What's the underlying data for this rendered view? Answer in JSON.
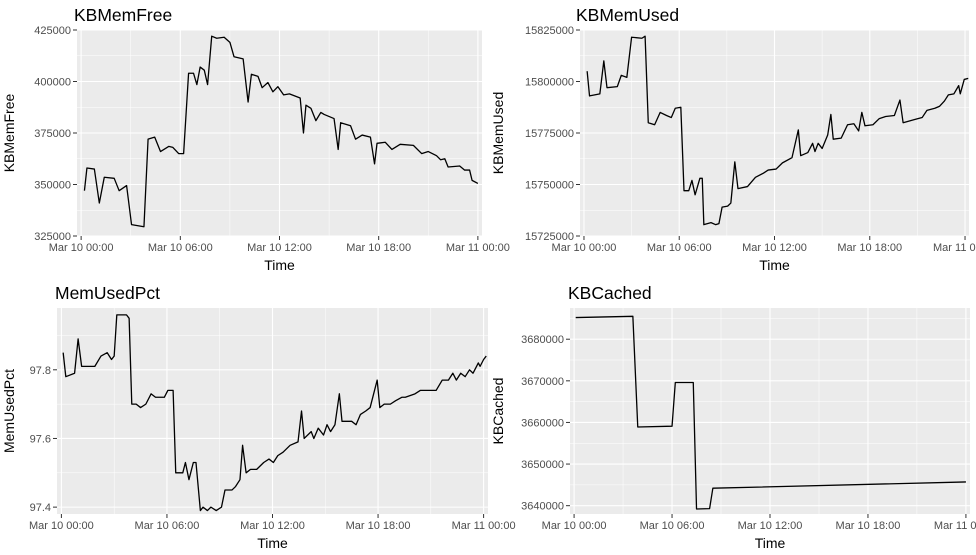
{
  "chart_data": [
    {
      "type": "line",
      "title": "KBMemFree",
      "xlabel": "Time",
      "ylabel": "KBMemFree",
      "xlim": [
        -0.25,
        24.25
      ],
      "ylim": [
        325000,
        425000
      ],
      "x_ticks": [
        0,
        6,
        12,
        18,
        24
      ],
      "x_tick_labels": [
        "Mar 10 00:00",
        "Mar 10 06:00",
        "Mar 10 12:00",
        "Mar 10 18:00",
        "Mar 11 00:00"
      ],
      "y_ticks": [
        325000,
        350000,
        375000,
        400000,
        425000
      ],
      "y_tick_labels": [
        "325000",
        "350000",
        "375000",
        "400000",
        "425000"
      ],
      "grid": true,
      "legend": "none",
      "points": [
        [
          0.2,
          347000
        ],
        [
          0.35,
          358000
        ],
        [
          0.8,
          357500
        ],
        [
          1.1,
          341000
        ],
        [
          1.4,
          353500
        ],
        [
          2.0,
          353000
        ],
        [
          2.3,
          347000
        ],
        [
          2.75,
          349500
        ],
        [
          3.05,
          330500
        ],
        [
          3.8,
          329500
        ],
        [
          4.05,
          372000
        ],
        [
          4.45,
          373000
        ],
        [
          4.8,
          366000
        ],
        [
          5.3,
          368500
        ],
        [
          5.55,
          368000
        ],
        [
          5.9,
          365000
        ],
        [
          6.2,
          365000
        ],
        [
          6.5,
          404000
        ],
        [
          6.8,
          404000
        ],
        [
          7.0,
          398500
        ],
        [
          7.2,
          407000
        ],
        [
          7.45,
          405500
        ],
        [
          7.65,
          398500
        ],
        [
          7.9,
          422000
        ],
        [
          8.2,
          421000
        ],
        [
          8.65,
          421500
        ],
        [
          9.0,
          419000
        ],
        [
          9.25,
          412000
        ],
        [
          9.8,
          411000
        ],
        [
          10.1,
          390000
        ],
        [
          10.3,
          403500
        ],
        [
          10.7,
          402500
        ],
        [
          10.95,
          397000
        ],
        [
          11.3,
          399500
        ],
        [
          11.6,
          395000
        ],
        [
          11.9,
          397500
        ],
        [
          12.25,
          393500
        ],
        [
          12.6,
          394000
        ],
        [
          13.25,
          392000
        ],
        [
          13.45,
          375000
        ],
        [
          13.6,
          388500
        ],
        [
          13.9,
          387000
        ],
        [
          14.2,
          381000
        ],
        [
          14.5,
          385000
        ],
        [
          14.7,
          384000
        ],
        [
          15.3,
          382000
        ],
        [
          15.55,
          367000
        ],
        [
          15.7,
          380000
        ],
        [
          16.3,
          378500
        ],
        [
          16.6,
          372000
        ],
        [
          17.0,
          374000
        ],
        [
          17.5,
          373000
        ],
        [
          17.75,
          360000
        ],
        [
          17.9,
          370000
        ],
        [
          18.4,
          370500
        ],
        [
          18.8,
          367000
        ],
        [
          19.3,
          369500
        ],
        [
          20.1,
          369000
        ],
        [
          20.6,
          365000
        ],
        [
          21.0,
          366000
        ],
        [
          21.5,
          364000
        ],
        [
          21.75,
          362000
        ],
        [
          22.0,
          362500
        ],
        [
          22.2,
          358500
        ],
        [
          22.9,
          359000
        ],
        [
          23.2,
          357000
        ],
        [
          23.5,
          357000
        ],
        [
          23.65,
          352000
        ],
        [
          24.0,
          350500
        ]
      ]
    },
    {
      "type": "line",
      "title": "KBMemUsed",
      "xlabel": "Time",
      "ylabel": "KBMemUsed",
      "xlim": [
        -0.25,
        24.25
      ],
      "ylim": [
        15725000,
        15825000
      ],
      "x_ticks": [
        0,
        6,
        12,
        18,
        24
      ],
      "x_tick_labels": [
        "Mar 10 00:00",
        "Mar 10 06:00",
        "Mar 10 12:00",
        "Mar 10 18:00",
        "Mar 11 00:00"
      ],
      "y_ticks": [
        15725000,
        15750000,
        15775000,
        15800000,
        15825000
      ],
      "y_tick_labels": [
        "15725000",
        "15750000",
        "15775000",
        "15800000",
        "15825000"
      ],
      "grid": true,
      "legend": "none",
      "points": [
        [
          0.2,
          15805000
        ],
        [
          0.35,
          15793000
        ],
        [
          1.0,
          15794000
        ],
        [
          1.25,
          15810000
        ],
        [
          1.45,
          15797000
        ],
        [
          2.1,
          15797500
        ],
        [
          2.35,
          15803000
        ],
        [
          2.7,
          15802000
        ],
        [
          3.0,
          15821500
        ],
        [
          3.65,
          15821000
        ],
        [
          3.85,
          15822000
        ],
        [
          4.05,
          15780000
        ],
        [
          4.45,
          15779000
        ],
        [
          4.8,
          15785000
        ],
        [
          5.2,
          15783500
        ],
        [
          5.5,
          15782500
        ],
        [
          5.75,
          15787000
        ],
        [
          6.1,
          15787500
        ],
        [
          6.3,
          15747000
        ],
        [
          6.6,
          15747000
        ],
        [
          6.8,
          15752000
        ],
        [
          7.0,
          15745000
        ],
        [
          7.3,
          15753000
        ],
        [
          7.45,
          15753000
        ],
        [
          7.55,
          15730500
        ],
        [
          8.0,
          15731500
        ],
        [
          8.3,
          15730500
        ],
        [
          8.5,
          15731000
        ],
        [
          8.7,
          15739000
        ],
        [
          9.05,
          15739500
        ],
        [
          9.25,
          15741000
        ],
        [
          9.5,
          15761000
        ],
        [
          9.7,
          15748000
        ],
        [
          10.3,
          15749000
        ],
        [
          10.8,
          15753500
        ],
        [
          11.3,
          15755500
        ],
        [
          11.6,
          15757000
        ],
        [
          12.1,
          15757500
        ],
        [
          12.5,
          15760500
        ],
        [
          13.1,
          15763000
        ],
        [
          13.5,
          15776500
        ],
        [
          13.65,
          15764000
        ],
        [
          14.1,
          15765500
        ],
        [
          14.4,
          15770000
        ],
        [
          14.55,
          15766000
        ],
        [
          14.75,
          15770000
        ],
        [
          15.0,
          15767500
        ],
        [
          15.35,
          15774000
        ],
        [
          15.55,
          15784000
        ],
        [
          15.7,
          15772000
        ],
        [
          16.2,
          15772500
        ],
        [
          16.6,
          15779000
        ],
        [
          17.0,
          15779500
        ],
        [
          17.3,
          15776000
        ],
        [
          17.5,
          15785000
        ],
        [
          17.7,
          15778500
        ],
        [
          18.2,
          15779000
        ],
        [
          18.6,
          15782000
        ],
        [
          19.0,
          15783000
        ],
        [
          19.55,
          15783500
        ],
        [
          19.9,
          15791000
        ],
        [
          20.1,
          15780000
        ],
        [
          20.8,
          15781500
        ],
        [
          21.3,
          15782500
        ],
        [
          21.6,
          15786000
        ],
        [
          22.1,
          15787000
        ],
        [
          22.4,
          15788000
        ],
        [
          22.7,
          15790500
        ],
        [
          22.95,
          15793500
        ],
        [
          23.3,
          15794000
        ],
        [
          23.6,
          15798000
        ],
        [
          23.7,
          15794000
        ],
        [
          23.95,
          15801000
        ],
        [
          24.2,
          15801500
        ]
      ]
    },
    {
      "type": "line",
      "title": "MemUsedPct",
      "xlabel": "Time",
      "ylabel": "MemUsedPct",
      "xlim": [
        -0.25,
        24.25
      ],
      "ylim": [
        97.38,
        97.98
      ],
      "x_ticks": [
        0,
        6,
        12,
        18,
        24
      ],
      "x_tick_labels": [
        "Mar 10 00:00",
        "Mar 10 06:00",
        "Mar 10 12:00",
        "Mar 10 18:00",
        "Mar 11 00:00"
      ],
      "y_ticks": [
        97.4,
        97.6,
        97.8
      ],
      "y_tick_labels": [
        "97.4",
        "97.6",
        "97.8"
      ],
      "grid": true,
      "legend": "none",
      "points": [
        [
          0.1,
          97.85
        ],
        [
          0.25,
          97.78
        ],
        [
          0.75,
          97.79
        ],
        [
          0.95,
          97.89
        ],
        [
          1.15,
          97.81
        ],
        [
          1.9,
          97.81
        ],
        [
          2.25,
          97.84
        ],
        [
          2.6,
          97.85
        ],
        [
          2.85,
          97.83
        ],
        [
          3.0,
          97.84
        ],
        [
          3.15,
          97.96
        ],
        [
          3.7,
          97.96
        ],
        [
          3.85,
          97.95
        ],
        [
          4.0,
          97.7
        ],
        [
          4.25,
          97.7
        ],
        [
          4.5,
          97.69
        ],
        [
          4.8,
          97.7
        ],
        [
          5.1,
          97.73
        ],
        [
          5.35,
          97.72
        ],
        [
          5.85,
          97.72
        ],
        [
          6.05,
          97.74
        ],
        [
          6.35,
          97.74
        ],
        [
          6.5,
          97.5
        ],
        [
          6.9,
          97.5
        ],
        [
          7.05,
          97.53
        ],
        [
          7.25,
          97.48
        ],
        [
          7.5,
          97.53
        ],
        [
          7.65,
          97.53
        ],
        [
          7.9,
          97.39
        ],
        [
          8.05,
          97.4
        ],
        [
          8.3,
          97.39
        ],
        [
          8.5,
          97.4
        ],
        [
          8.8,
          97.39
        ],
        [
          9.1,
          97.4
        ],
        [
          9.3,
          97.45
        ],
        [
          9.7,
          97.45
        ],
        [
          9.9,
          97.46
        ],
        [
          10.15,
          97.48
        ],
        [
          10.3,
          97.58
        ],
        [
          10.5,
          97.5
        ],
        [
          10.75,
          97.51
        ],
        [
          11.1,
          97.51
        ],
        [
          11.5,
          97.53
        ],
        [
          11.8,
          97.54
        ],
        [
          12.05,
          97.53
        ],
        [
          12.3,
          97.55
        ],
        [
          12.6,
          97.56
        ],
        [
          13.0,
          97.58
        ],
        [
          13.45,
          97.59
        ],
        [
          13.65,
          97.68
        ],
        [
          13.8,
          97.6
        ],
        [
          14.2,
          97.62
        ],
        [
          14.35,
          97.6
        ],
        [
          14.6,
          97.63
        ],
        [
          14.9,
          97.61
        ],
        [
          15.1,
          97.64
        ],
        [
          15.3,
          97.62
        ],
        [
          15.55,
          97.64
        ],
        [
          15.8,
          97.73
        ],
        [
          15.95,
          97.65
        ],
        [
          16.5,
          97.65
        ],
        [
          16.75,
          97.64
        ],
        [
          17.0,
          97.67
        ],
        [
          17.3,
          97.68
        ],
        [
          17.55,
          97.69
        ],
        [
          17.95,
          97.77
        ],
        [
          18.1,
          97.69
        ],
        [
          18.35,
          97.7
        ],
        [
          18.7,
          97.7
        ],
        [
          19.0,
          97.71
        ],
        [
          19.35,
          97.72
        ],
        [
          19.55,
          97.72
        ],
        [
          20.1,
          97.73
        ],
        [
          20.4,
          97.74
        ],
        [
          21.0,
          97.74
        ],
        [
          21.3,
          97.74
        ],
        [
          21.65,
          97.77
        ],
        [
          22.0,
          97.77
        ],
        [
          22.25,
          97.79
        ],
        [
          22.45,
          97.77
        ],
        [
          22.7,
          97.79
        ],
        [
          22.95,
          97.78
        ],
        [
          23.2,
          97.8
        ],
        [
          23.4,
          97.79
        ],
        [
          23.7,
          97.82
        ],
        [
          23.8,
          97.81
        ],
        [
          24.0,
          97.83
        ],
        [
          24.15,
          97.84
        ]
      ]
    },
    {
      "type": "line",
      "title": "KBCached",
      "xlabel": "Time",
      "ylabel": "KBCached",
      "xlim": [
        -0.25,
        24.25
      ],
      "ylim": [
        3638000,
        3687500
      ],
      "x_ticks": [
        0,
        6,
        12,
        18,
        24
      ],
      "x_tick_labels": [
        "Mar 10 00:00",
        "Mar 10 06:00",
        "Mar 10 12:00",
        "Mar 10 18:00",
        "Mar 11 00:00"
      ],
      "y_ticks": [
        3640000,
        3650000,
        3660000,
        3670000,
        3680000
      ],
      "y_tick_labels": [
        "3640000",
        "3650000",
        "3660000",
        "3670000",
        "3680000"
      ],
      "grid": true,
      "legend": "none",
      "points": [
        [
          0.1,
          3685200
        ],
        [
          3.6,
          3685500
        ],
        [
          3.9,
          3658900
        ],
        [
          6.0,
          3659100
        ],
        [
          6.2,
          3669600
        ],
        [
          7.3,
          3669600
        ],
        [
          7.5,
          3639200
        ],
        [
          8.3,
          3639300
        ],
        [
          8.5,
          3644200
        ],
        [
          24.0,
          3645700
        ]
      ]
    }
  ]
}
